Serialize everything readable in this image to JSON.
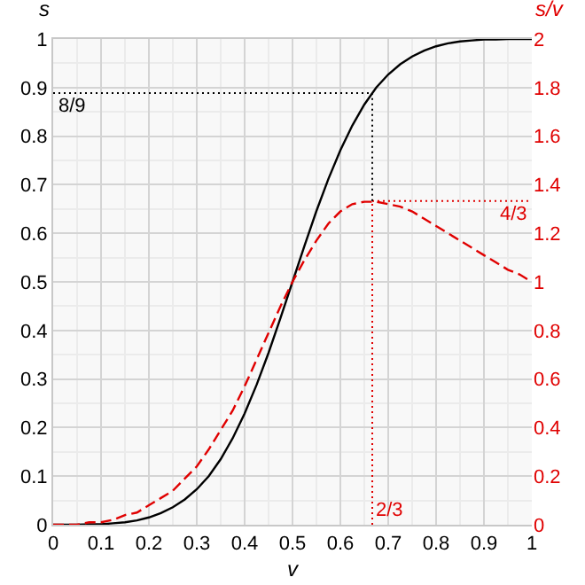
{
  "chart_data": {
    "type": "line",
    "xlabel": "v",
    "ylabel": "s",
    "y2label": "s/v",
    "x": [
      0,
      0.025,
      0.05,
      0.075,
      0.1,
      0.125,
      0.15,
      0.175,
      0.2,
      0.225,
      0.25,
      0.275,
      0.3,
      0.325,
      0.35,
      0.375,
      0.4,
      0.425,
      0.45,
      0.475,
      0.5,
      0.525,
      0.55,
      0.575,
      0.6,
      0.625,
      0.65,
      0.675,
      0.7,
      0.725,
      0.75,
      0.775,
      0.8,
      0.825,
      0.85,
      0.875,
      0.9,
      0.925,
      0.95,
      0.975,
      1
    ],
    "series": [
      {
        "color": "#000000",
        "line_style": "solid",
        "values": [
          0,
          0,
          0,
          0.001,
          0.001,
          0.003,
          0.005,
          0.009,
          0.015,
          0.024,
          0.036,
          0.052,
          0.073,
          0.1,
          0.135,
          0.178,
          0.229,
          0.288,
          0.354,
          0.426,
          0.5,
          0.574,
          0.646,
          0.712,
          0.771,
          0.822,
          0.865,
          0.9,
          0.927,
          0.948,
          0.964,
          0.976,
          0.985,
          0.991,
          0.995,
          0.997,
          0.999,
          0.999,
          1,
          1,
          1
        ]
      },
      {
        "color": "#e00000",
        "line_style": "dashed",
        "axis": "y2",
        "values": [
          0,
          0,
          0,
          0.01,
          0.01,
          0.02,
          0.04,
          0.05,
          0.08,
          0.11,
          0.14,
          0.19,
          0.24,
          0.31,
          0.39,
          0.47,
          0.57,
          0.68,
          0.79,
          0.9,
          1,
          1.09,
          1.17,
          1.24,
          1.29,
          1.32,
          1.33,
          1.33,
          1.32,
          1.31,
          1.29,
          1.26,
          1.23,
          1.2,
          1.17,
          1.14,
          1.11,
          1.08,
          1.05,
          1.03,
          1
        ]
      }
    ],
    "xlim": [
      0,
      1
    ],
    "xticks": [
      0,
      0.1,
      0.2,
      0.3,
      0.4,
      0.5,
      0.6,
      0.7,
      0.8,
      0.9,
      1
    ],
    "ylim": [
      0,
      1
    ],
    "yticks": [
      0,
      0.1,
      0.2,
      0.3,
      0.4,
      0.5,
      0.6,
      0.7,
      0.8,
      0.9,
      1
    ],
    "y2lim": [
      0,
      2
    ],
    "y2ticks": [
      0,
      0.2,
      0.4,
      0.6,
      0.8,
      1,
      1.2,
      1.4,
      1.6,
      1.8,
      2
    ],
    "ref_lines": [
      {
        "axis": "y",
        "value": 0.8888889,
        "color": "#000000",
        "line_style": "dotted"
      },
      {
        "axis": "y2",
        "value": 1.3333333,
        "color": "#e00000",
        "line_style": "dotted"
      },
      {
        "axis": "x",
        "value": 0.6666667,
        "color": "#e00000",
        "line_style": "dotted"
      },
      {
        "axis": "x",
        "value": 0.6666667,
        "color": "#000000",
        "line_style": "dotted"
      }
    ],
    "annotations": [
      "8/9",
      "4/3",
      "2/3"
    ],
    "grid": true
  }
}
